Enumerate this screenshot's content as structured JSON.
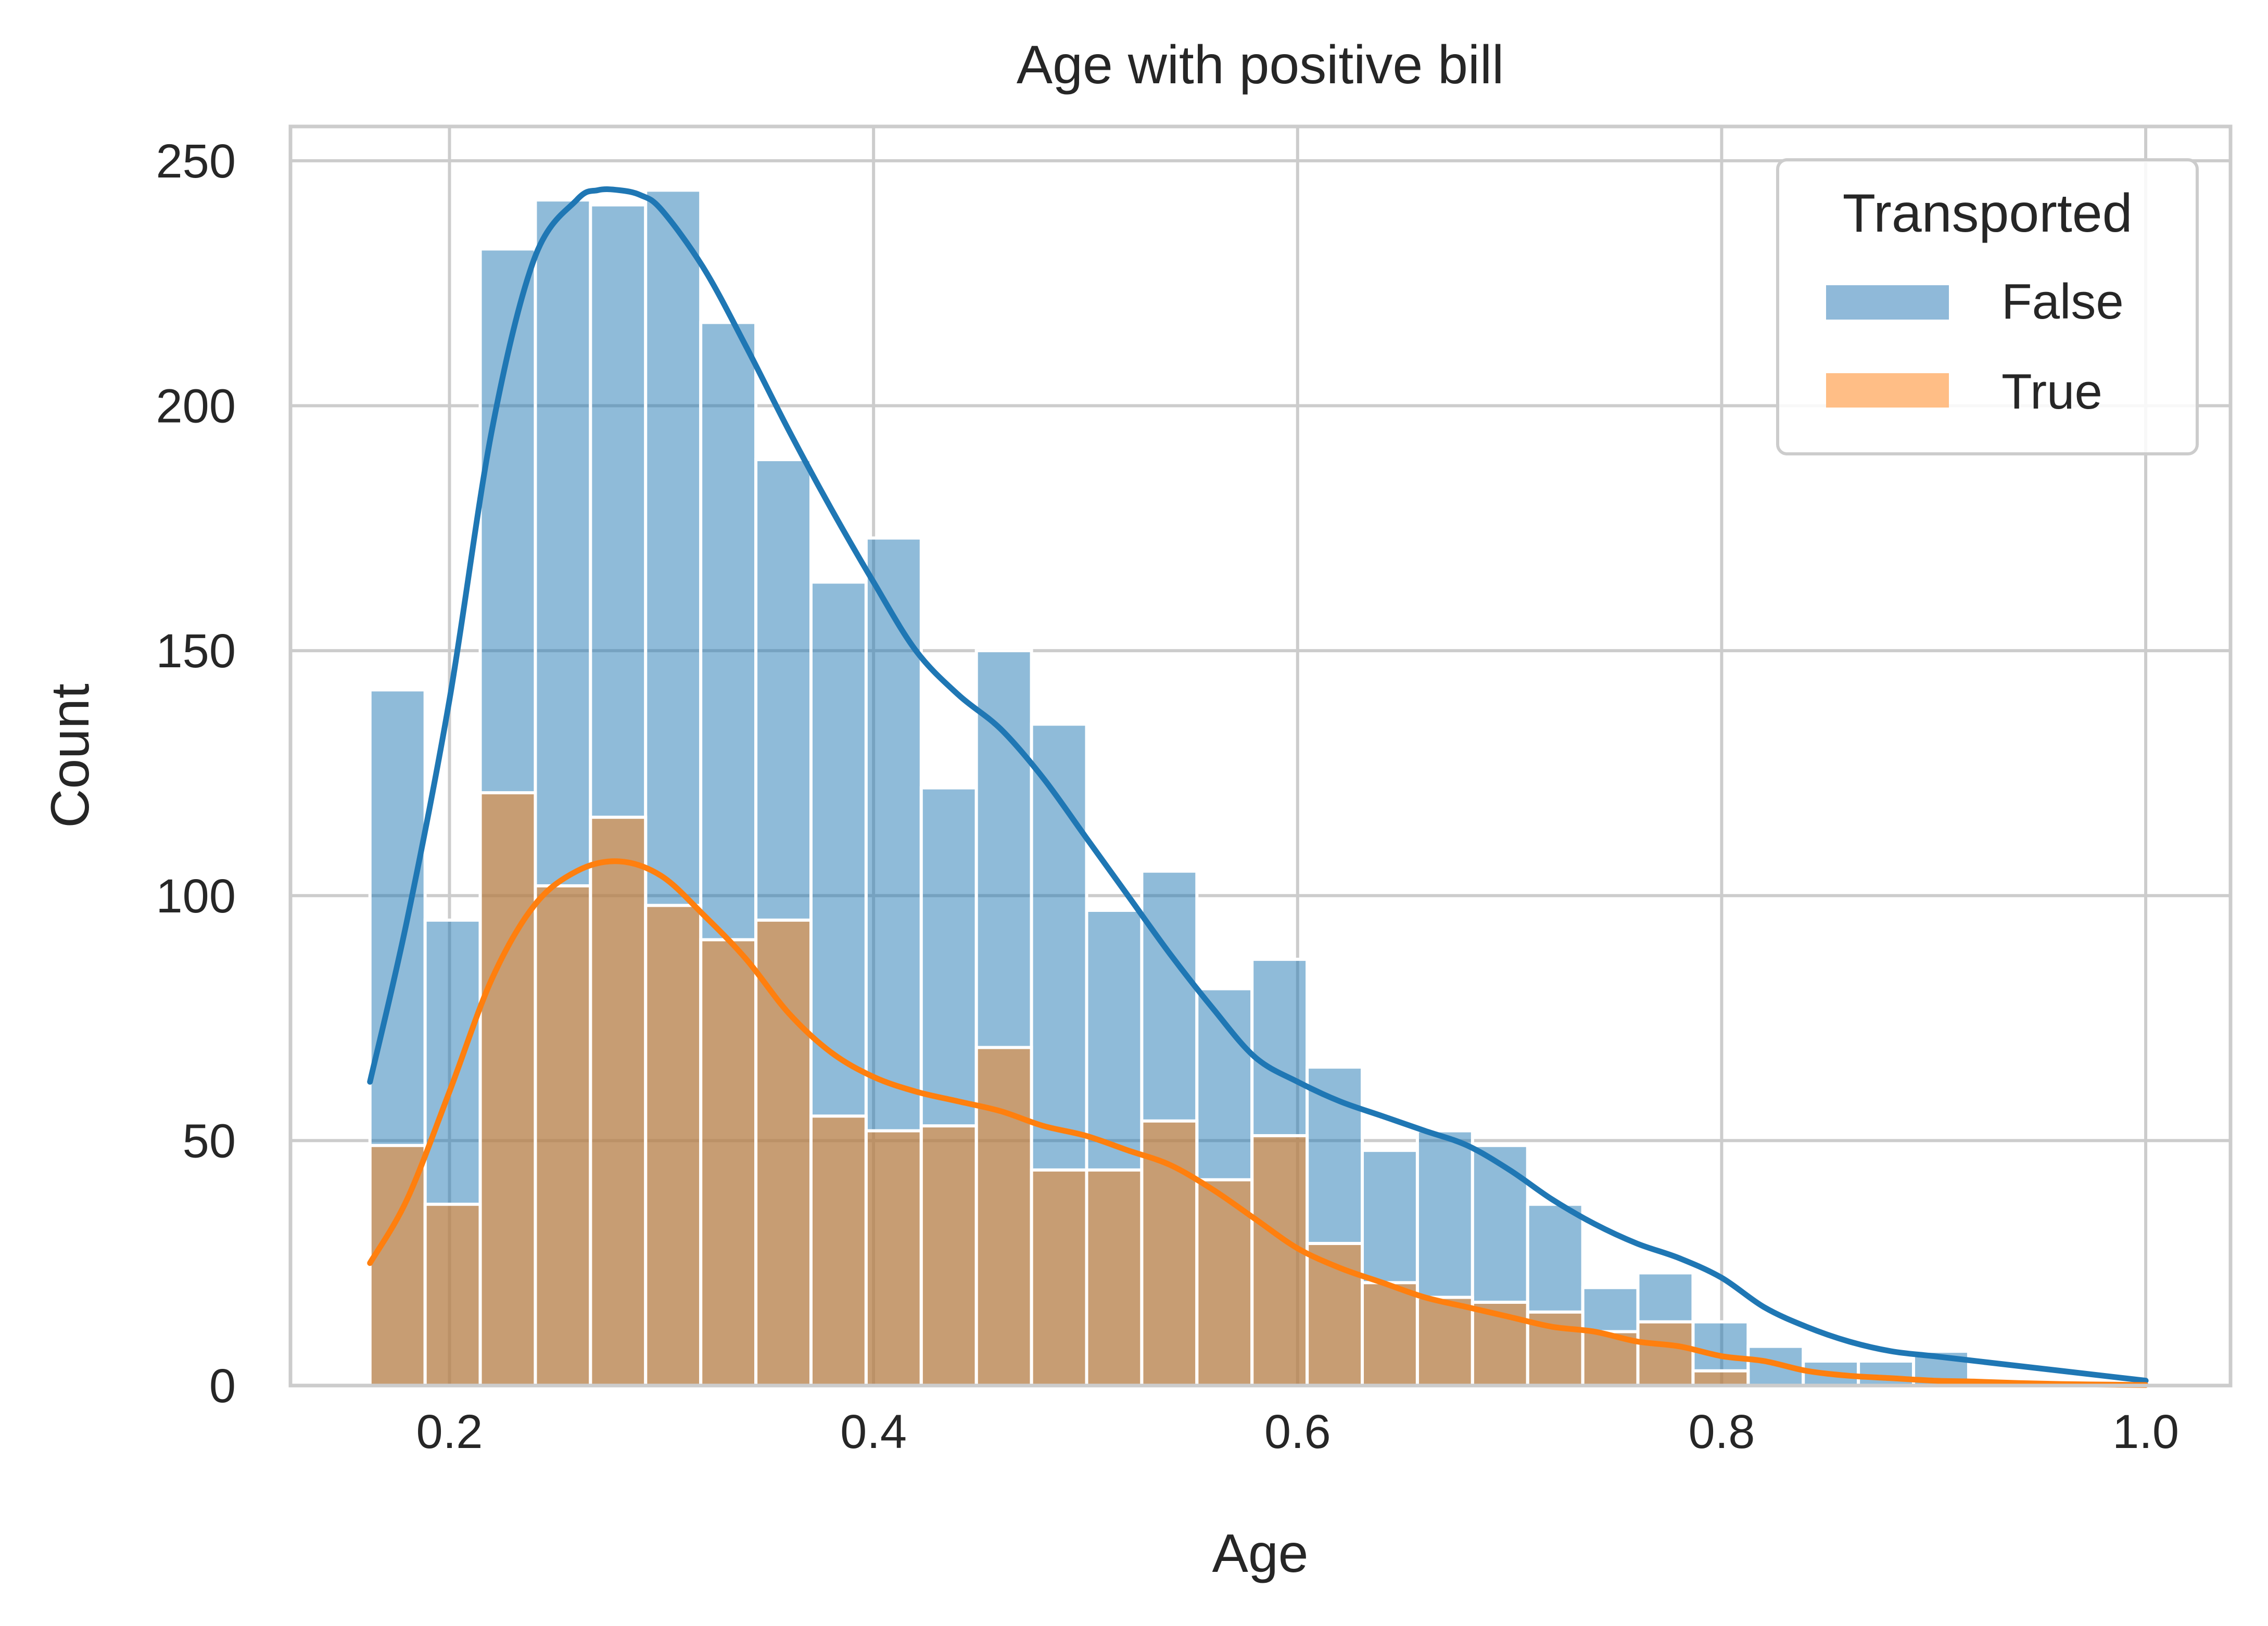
{
  "chart_data": {
    "type": "histogram",
    "title": "Age with positive bill",
    "xlabel": "Age",
    "ylabel": "Count",
    "xlim": [
      0.125,
      1.04
    ],
    "ylim": [
      0,
      257
    ],
    "xticks": [
      0.2,
      0.4,
      0.6,
      0.8,
      1.0
    ],
    "xtick_labels": [
      "0.2",
      "0.4",
      "0.6",
      "0.8",
      "1.0"
    ],
    "yticks": [
      0,
      50,
      100,
      150,
      200,
      250
    ],
    "ytick_labels": [
      "0",
      "50",
      "100",
      "150",
      "200",
      "250"
    ],
    "grid": true,
    "legend": {
      "title": "Transported",
      "placement": "top-right"
    },
    "bin_start": 0.1625,
    "bin_width": 0.026,
    "series": [
      {
        "name": "False",
        "color": "#1f77b4",
        "fill_color": "#8fb9d9",
        "counts": [
          142,
          95,
          232,
          242,
          241,
          244,
          217,
          189,
          164,
          173,
          122,
          150,
          135,
          97,
          105,
          81,
          87,
          65,
          48,
          52,
          49,
          37,
          20,
          23,
          13,
          8,
          5,
          5,
          7
        ],
        "kde": {
          "x": [
            0.1625,
            0.18,
            0.2,
            0.22,
            0.24,
            0.26,
            0.27,
            0.28,
            0.29,
            0.3,
            0.32,
            0.34,
            0.36,
            0.38,
            0.4,
            0.42,
            0.44,
            0.46,
            0.48,
            0.5,
            0.52,
            0.54,
            0.56,
            0.58,
            0.6,
            0.62,
            0.64,
            0.66,
            0.68,
            0.7,
            0.72,
            0.74,
            0.76,
            0.78,
            0.8,
            0.82,
            0.84,
            0.86,
            0.88,
            0.9,
            0.92,
            0.94,
            0.96,
            0.98,
            1.0
          ],
          "y": [
            62,
            95,
            140,
            195,
            230,
            242,
            244,
            244,
            243,
            240,
            228,
            212,
            195,
            179,
            164,
            150,
            141,
            134,
            124,
            112,
            100,
            88,
            77,
            67,
            62,
            58,
            55,
            52,
            49,
            44,
            38,
            33,
            29,
            26,
            22,
            16,
            12,
            9,
            7,
            6,
            5,
            4,
            3,
            2,
            1
          ]
        }
      },
      {
        "name": "True",
        "color": "#ff7f0e",
        "fill_color": "#ffbe86",
        "counts": [
          49,
          37,
          121,
          102,
          116,
          98,
          91,
          95,
          55,
          52,
          53,
          69,
          44,
          44,
          54,
          42,
          51,
          29,
          21,
          18,
          17,
          15,
          11,
          13,
          3,
          0,
          0,
          0,
          0
        ],
        "kde": {
          "x": [
            0.1625,
            0.18,
            0.2,
            0.22,
            0.24,
            0.26,
            0.28,
            0.3,
            0.32,
            0.34,
            0.36,
            0.38,
            0.4,
            0.42,
            0.44,
            0.46,
            0.48,
            0.5,
            0.52,
            0.54,
            0.56,
            0.58,
            0.6,
            0.62,
            0.64,
            0.66,
            0.68,
            0.7,
            0.72,
            0.74,
            0.76,
            0.78,
            0.8,
            0.82,
            0.84,
            0.86,
            0.88,
            0.9,
            0.92,
            0.94,
            0.96,
            0.98,
            1.0
          ],
          "y": [
            25,
            38,
            60,
            83,
            98,
            105,
            107,
            104,
            96,
            87,
            76,
            68,
            63,
            60,
            58,
            56,
            53,
            51,
            48,
            45,
            40,
            34,
            28,
            24,
            21,
            18,
            16,
            14,
            12,
            11,
            9,
            8,
            6,
            5,
            3,
            2,
            1.5,
            1,
            0.8,
            0.5,
            0.3,
            0.2,
            0.1
          ]
        }
      }
    ]
  }
}
